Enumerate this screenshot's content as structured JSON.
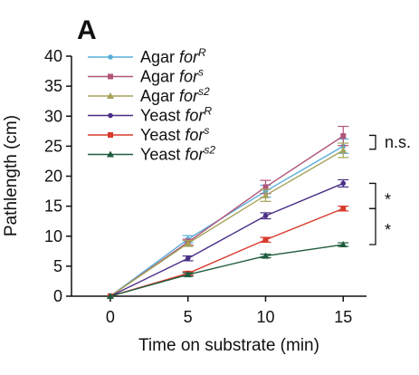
{
  "chart_data": {
    "type": "line",
    "panel_label": "A",
    "xlabel": "Time on substrate (min)",
    "ylabel": "Pathlength (cm)",
    "x": [
      0,
      5,
      10,
      15
    ],
    "xlim": [
      -2.5,
      16.5
    ],
    "ylim": [
      0,
      40
    ],
    "xticks": [
      0,
      5,
      10,
      15
    ],
    "yticks": [
      0,
      5,
      10,
      15,
      20,
      25,
      30,
      35,
      40
    ],
    "grid": false,
    "legend_position": "top-left",
    "series": [
      {
        "name_prefix": "Agar ",
        "name_italic": "for",
        "name_sup": "R",
        "color": "#5aaed8",
        "marker": "circle",
        "values": [
          0,
          9.5,
          17.5,
          25.0
        ],
        "errors": [
          0,
          0.6,
          1.0,
          1.2
        ]
      },
      {
        "name_prefix": "Agar ",
        "name_italic": "for",
        "name_sup": "s",
        "color": "#b0557a",
        "marker": "square",
        "values": [
          0,
          9.0,
          18.2,
          26.7
        ],
        "errors": [
          0,
          0.5,
          1.1,
          1.6
        ]
      },
      {
        "name_prefix": "Agar ",
        "name_italic": "for",
        "name_sup": "s2",
        "color": "#a6a25a",
        "marker": "triangle",
        "values": [
          0,
          8.8,
          16.8,
          24.3
        ],
        "errors": [
          0,
          0.5,
          1.0,
          1.2
        ]
      },
      {
        "name_prefix": "Yeast ",
        "name_italic": "for",
        "name_sup": "R",
        "color": "#4a2f86",
        "marker": "circle",
        "values": [
          0,
          6.3,
          13.4,
          18.8
        ],
        "errors": [
          0,
          0.4,
          0.5,
          0.6
        ]
      },
      {
        "name_prefix": "Yeast ",
        "name_italic": "for",
        "name_sup": "s",
        "color": "#d83a2c",
        "marker": "square",
        "values": [
          0,
          3.8,
          9.4,
          14.6
        ],
        "errors": [
          0,
          0.3,
          0.4,
          0.4
        ]
      },
      {
        "name_prefix": "Yeast ",
        "name_italic": "for",
        "name_sup": "s2",
        "color": "#1f5c3e",
        "marker": "triangle",
        "values": [
          0,
          3.6,
          6.7,
          8.6
        ],
        "errors": [
          0,
          0.3,
          0.3,
          0.3
        ]
      }
    ],
    "annotations": [
      {
        "label": "n.s.",
        "from_value": 24.5,
        "to_value": 26.8
      },
      {
        "label": "*",
        "from_value": 14.6,
        "to_value": 18.8
      },
      {
        "label": "*",
        "from_value": 8.6,
        "to_value": 14.6
      }
    ]
  }
}
